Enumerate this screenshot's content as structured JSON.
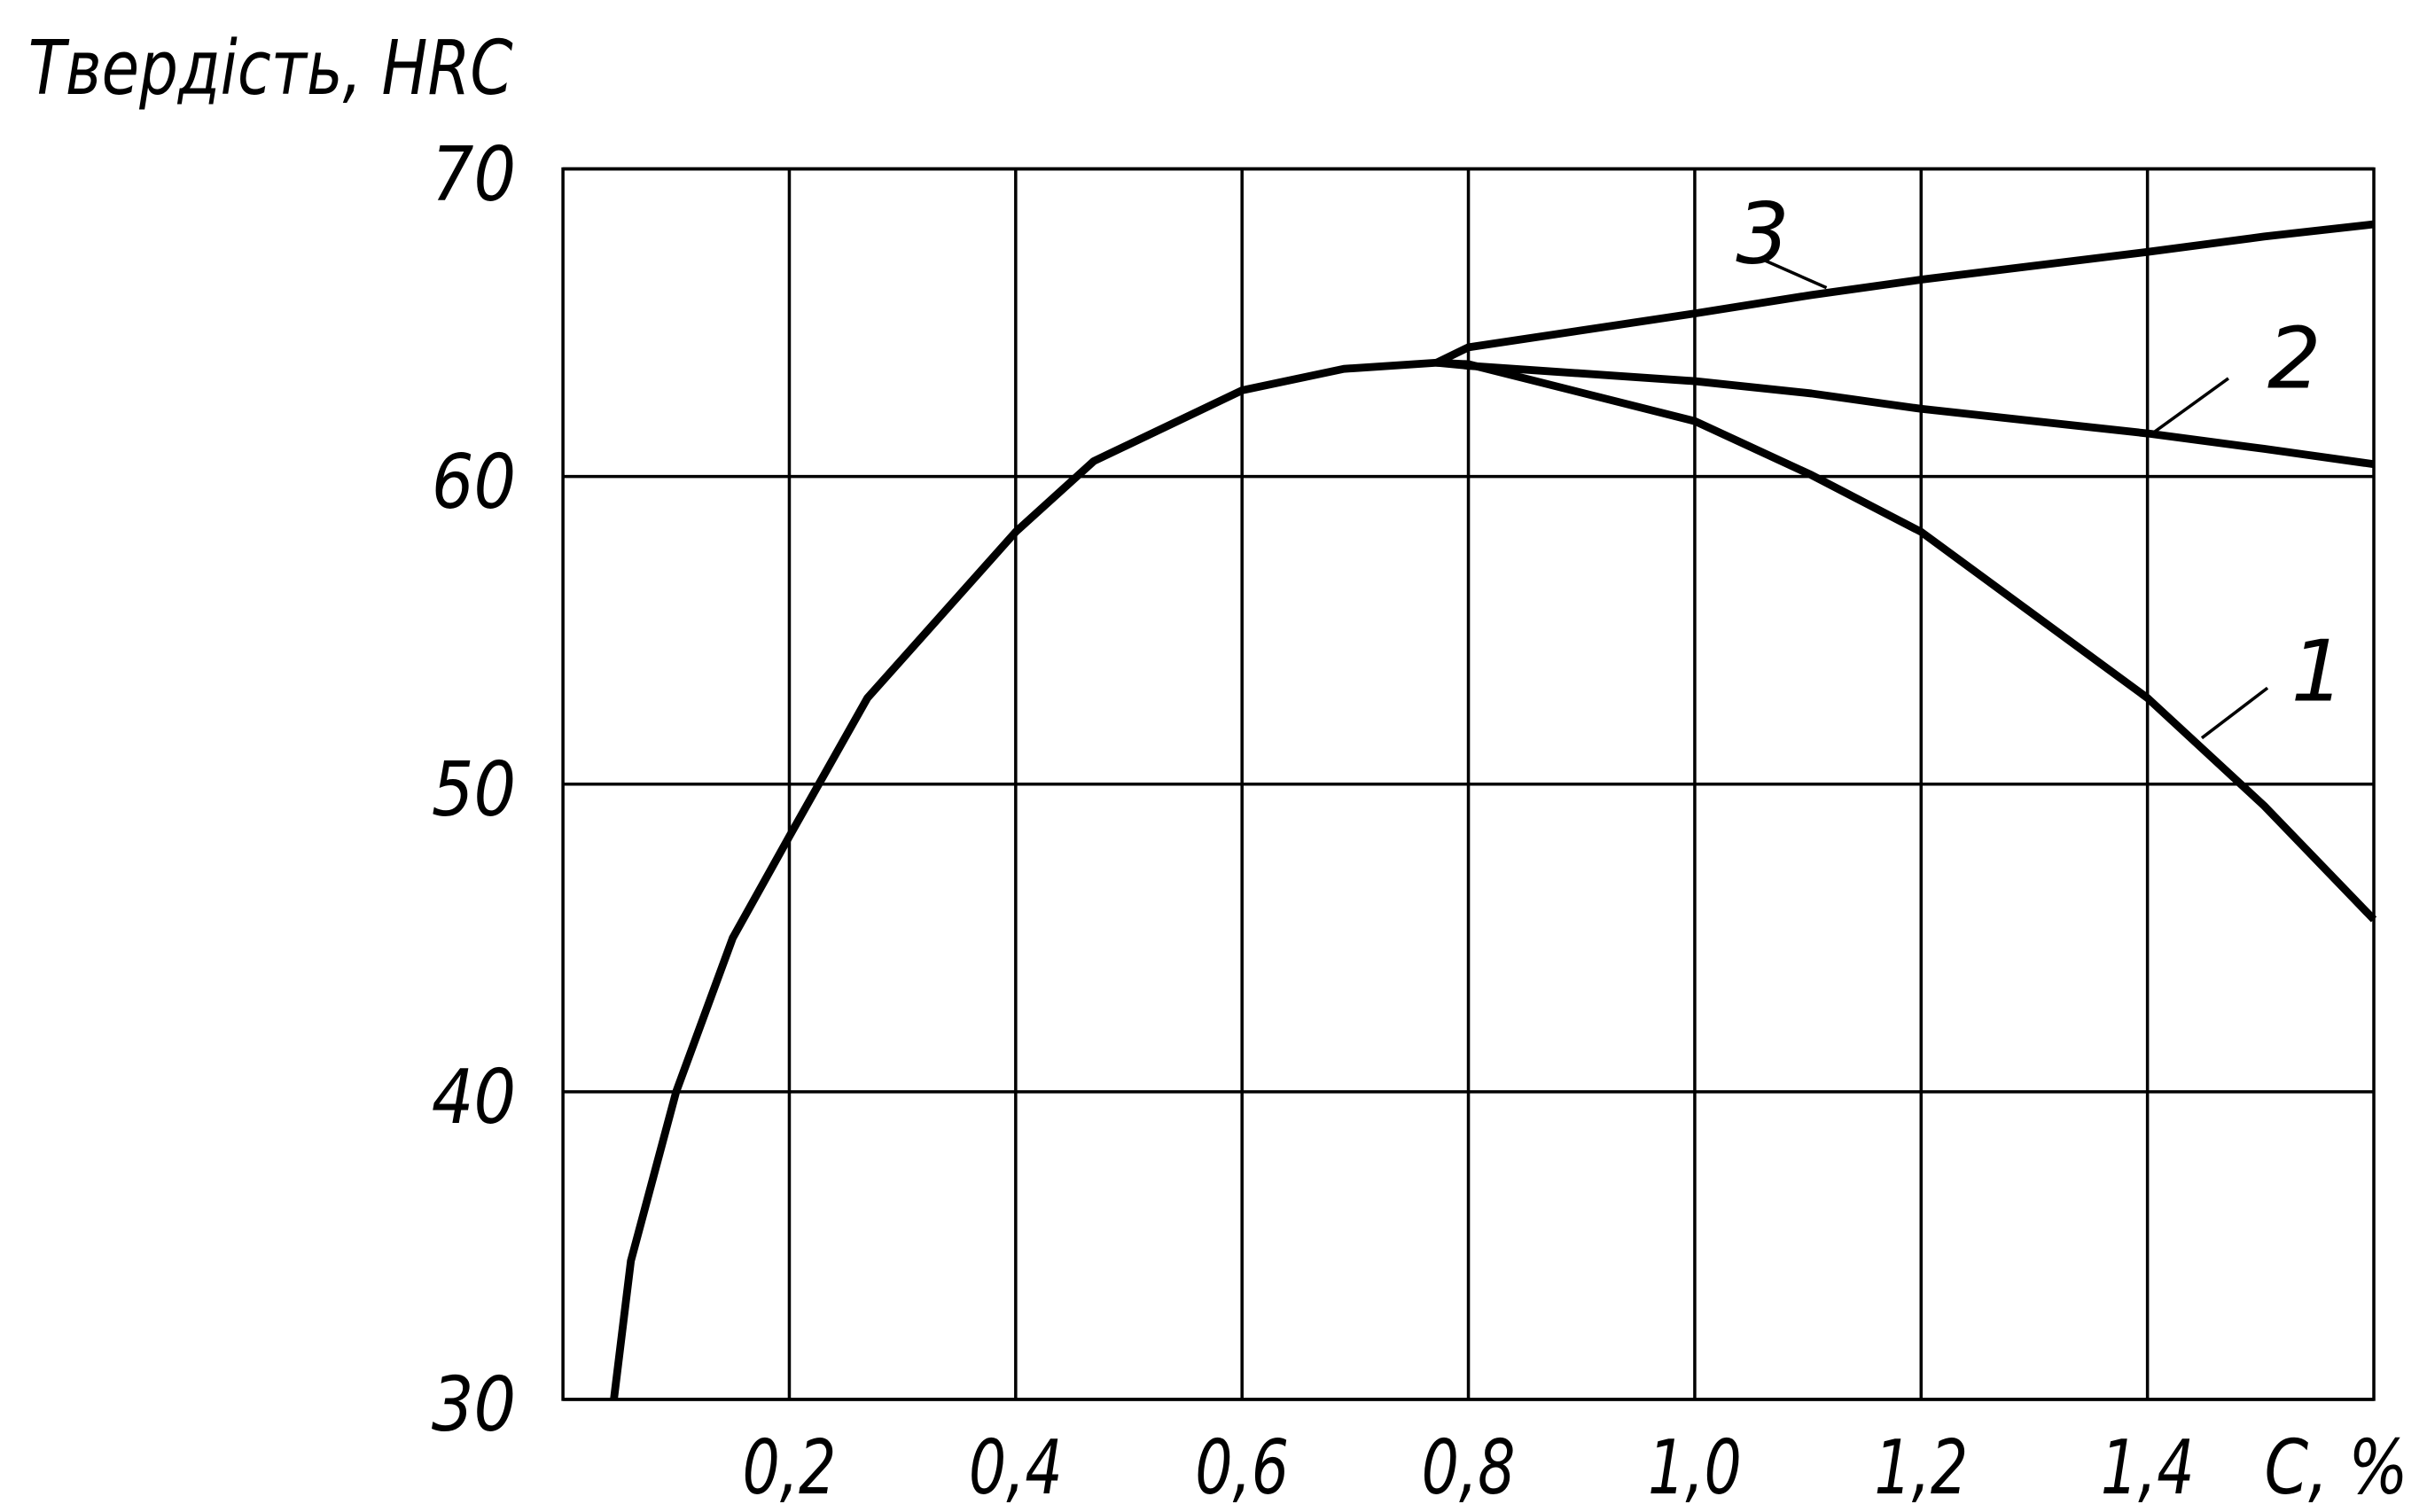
{
  "chart_data": {
    "type": "line",
    "ylabel": "Твердість, HRC",
    "xlabel": "C, %",
    "x": [
      0.045,
      0.06,
      0.1,
      0.15,
      0.2,
      0.269,
      0.4,
      0.469,
      0.6,
      0.69,
      0.772,
      0.8,
      1.0,
      1.103,
      1.2,
      1.4,
      1.503,
      1.6
    ],
    "series": [
      {
        "name": "1",
        "color": "#000000",
        "values": [
          30,
          34.5,
          40,
          45,
          48.3,
          52.8,
          58.2,
          60.5,
          62.8,
          63.5,
          63.7,
          63.65,
          61.8,
          60.05,
          58.2,
          52.8,
          49.3,
          45.6
        ]
      },
      {
        "name": "2",
        "color": "#000000",
        "values": [
          null,
          null,
          null,
          null,
          null,
          null,
          null,
          null,
          null,
          null,
          63.7,
          63.6,
          63.1,
          62.7,
          62.2,
          61.4,
          60.9,
          60.4
        ]
      },
      {
        "name": "3",
        "color": "#000000",
        "values": [
          null,
          null,
          null,
          null,
          null,
          null,
          null,
          null,
          null,
          null,
          63.7,
          64.2,
          65.3,
          65.9,
          66.4,
          67.3,
          67.8,
          68.2
        ]
      }
    ],
    "xlim": [
      0,
      1.6
    ],
    "ylim": [
      30,
      70
    ],
    "xticks": [
      {
        "value": 0.2,
        "label": "0,2"
      },
      {
        "value": 0.4,
        "label": "0,4"
      },
      {
        "value": 0.6,
        "label": "0,6"
      },
      {
        "value": 0.8,
        "label": "0,8"
      },
      {
        "value": 1.0,
        "label": "1,0"
      },
      {
        "value": 1.2,
        "label": "1,2"
      },
      {
        "value": 1.4,
        "label": "1,4"
      }
    ],
    "yticks": [
      30,
      40,
      50,
      60,
      70
    ],
    "grid": true
  }
}
